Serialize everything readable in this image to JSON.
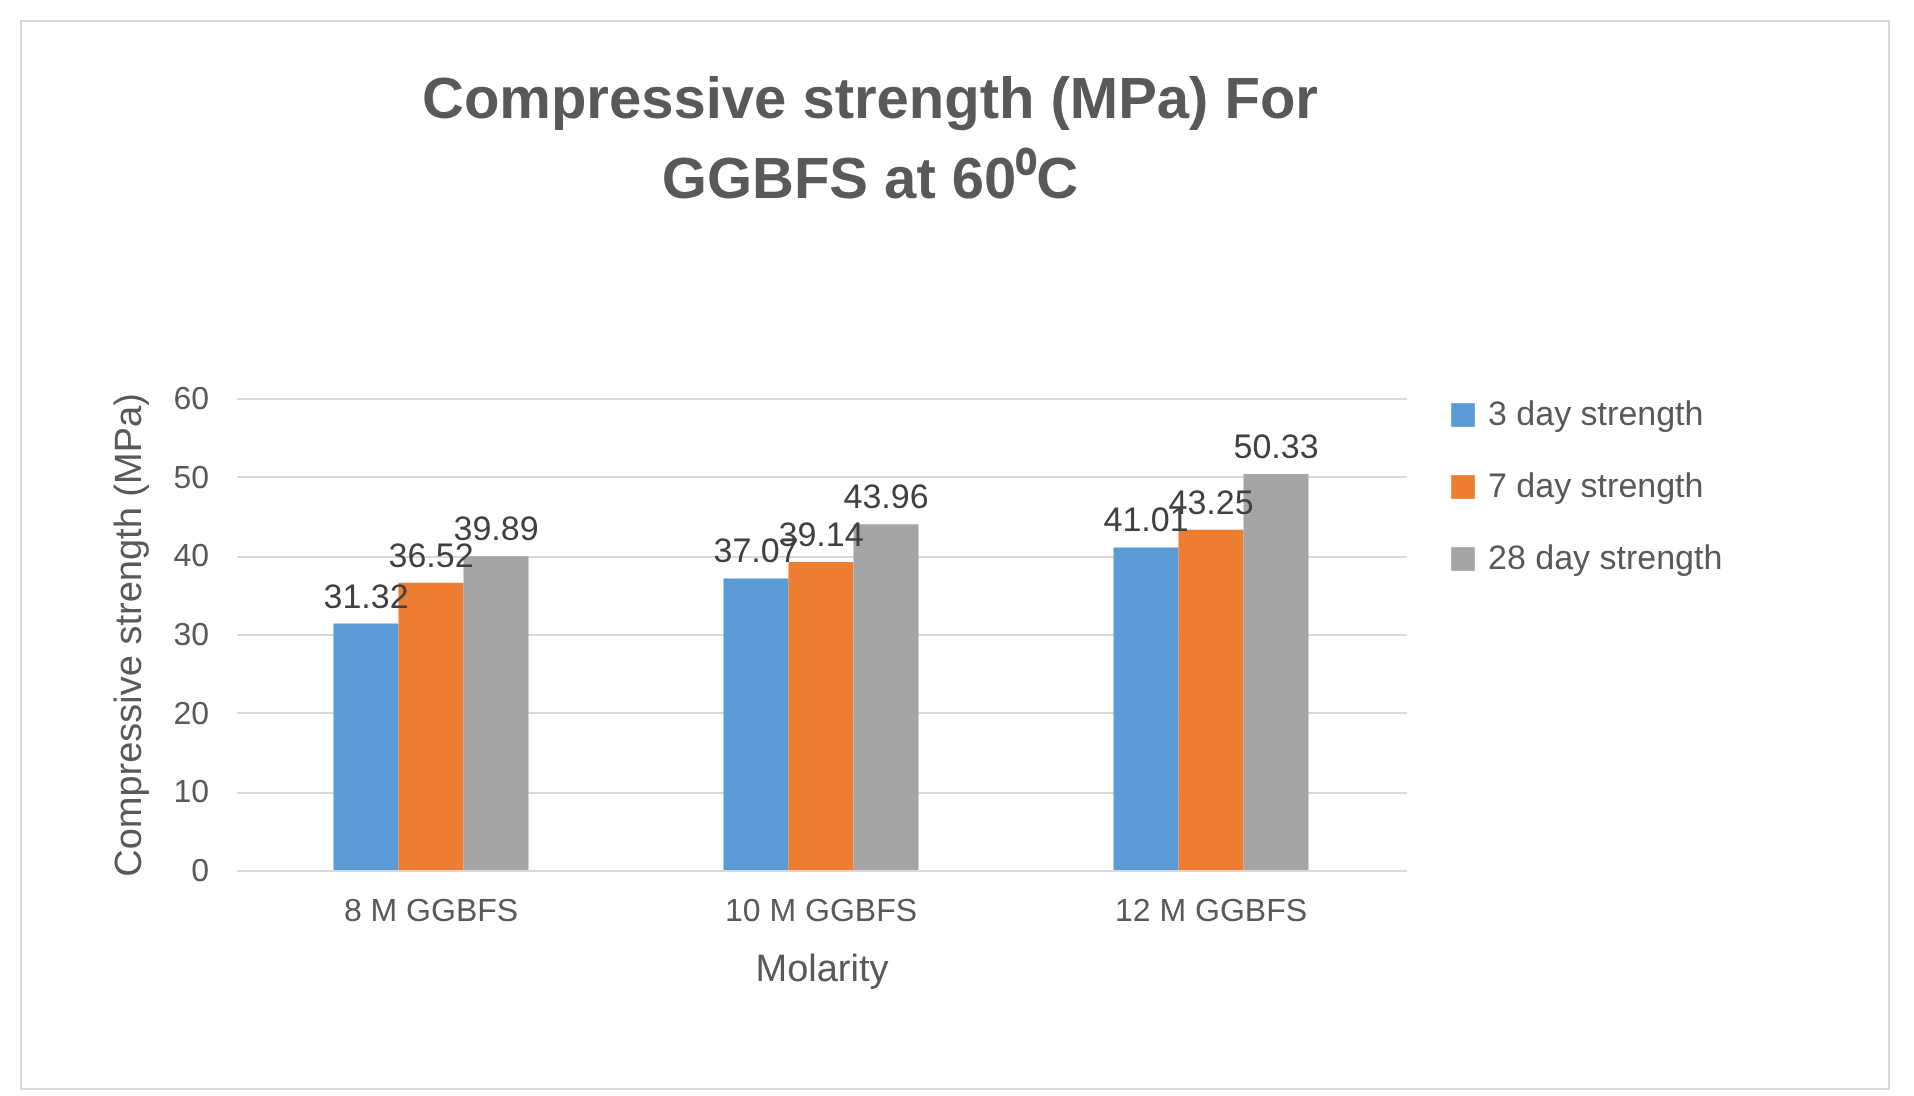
{
  "chart_data": {
    "type": "bar",
    "title": "Compressive strength (MPa) For GGBFS at 60⁰C",
    "xlabel": "Molarity",
    "ylabel": "Compressive strength (MPa)",
    "categories": [
      "8 M GGBFS",
      "10 M GGBFS",
      "12 M GGBFS"
    ],
    "series": [
      {
        "name": "3 day strength",
        "color": "#5b9bd5",
        "values": [
          31.32,
          37.07,
          41.01
        ]
      },
      {
        "name": "7 day strength",
        "color": "#ed7d31",
        "values": [
          36.52,
          39.14,
          43.25
        ]
      },
      {
        "name": "28 day strength",
        "color": "#a5a5a5",
        "values": [
          39.89,
          43.96,
          50.33
        ]
      }
    ],
    "ylim": [
      0,
      60
    ],
    "yticks": [
      0,
      10,
      20,
      30,
      40,
      50,
      60
    ],
    "grid": "y",
    "legend": "right",
    "data_labels": true
  }
}
